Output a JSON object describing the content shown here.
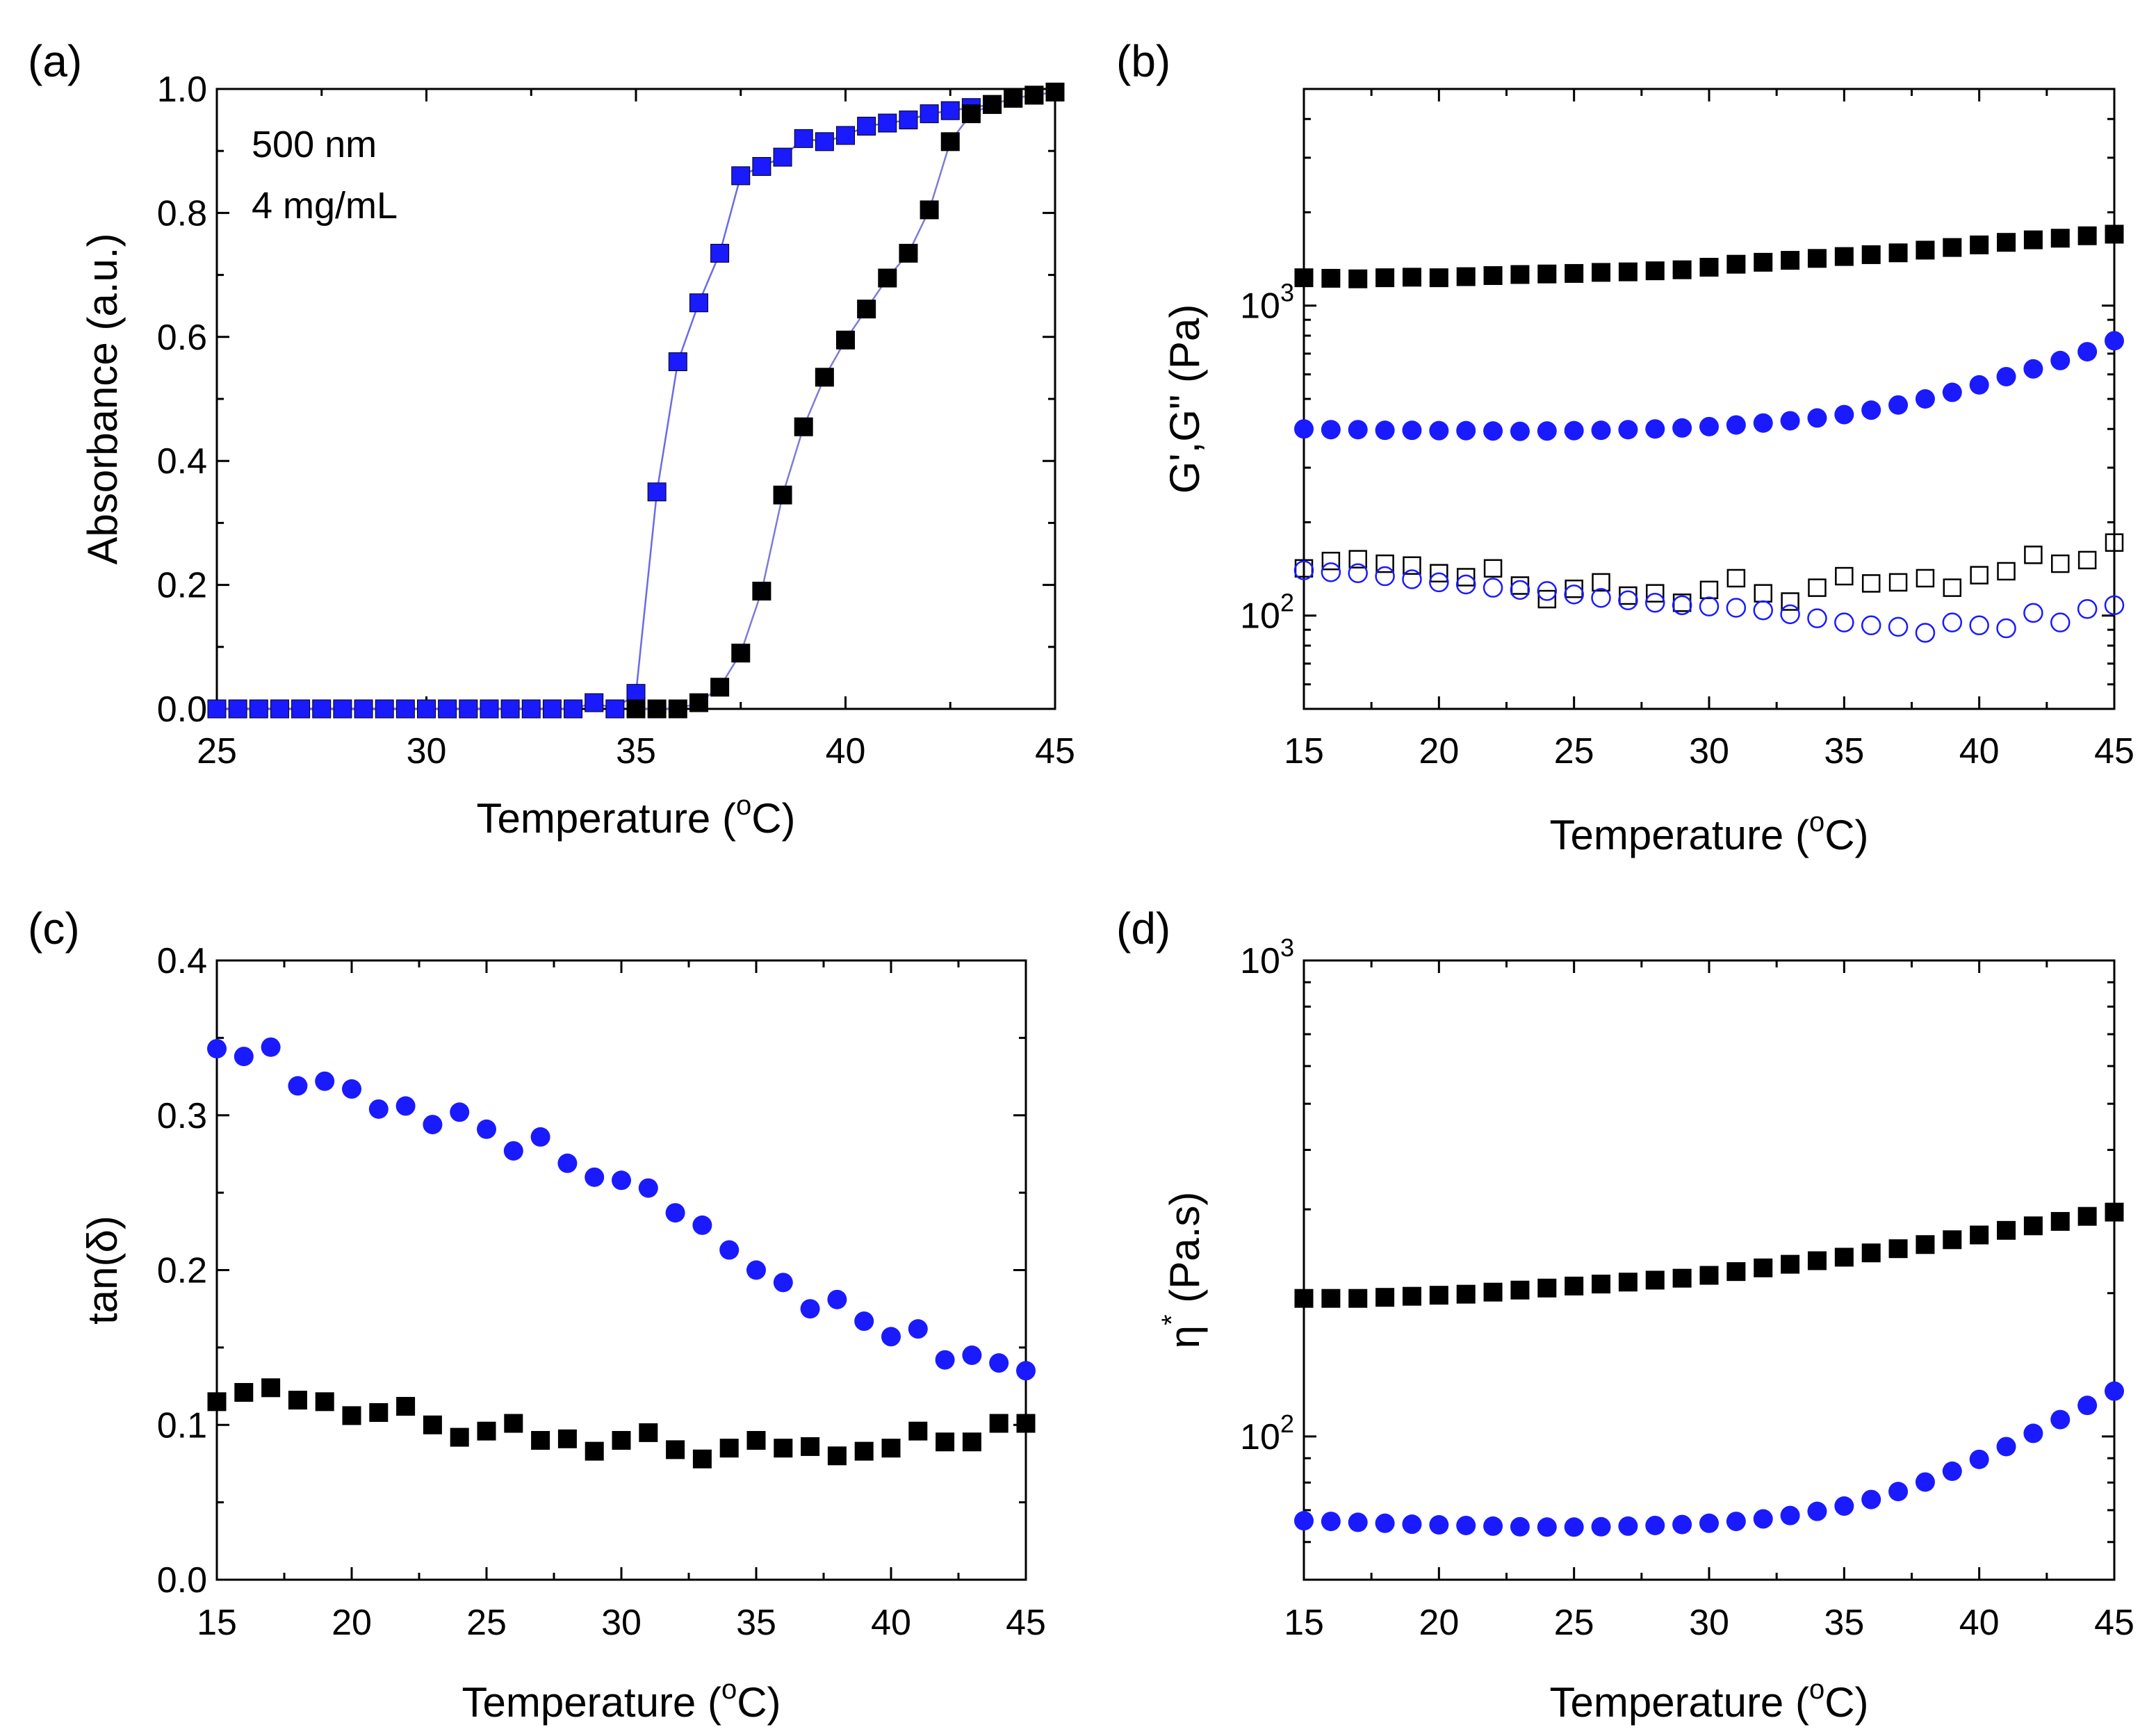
{
  "chart_data": [
    {
      "type": "scatter",
      "panel_label": "(a)",
      "xlabel": "Temperature (",
      "xlabel_unit": "oC",
      "xlabel_sup": "o",
      "xlabel_suffix": "C)",
      "ylabel": "Absorbance (a.u.)",
      "xlim": [
        25,
        45
      ],
      "ylim": [
        0,
        1.0
      ],
      "yscale": "linear",
      "xticks": [
        25,
        30,
        35,
        40,
        45
      ],
      "yticks": [
        "0.0",
        "0.2",
        "0.4",
        "0.6",
        "0.8",
        "1.0"
      ],
      "annotations": [
        "500 nm",
        "4 mg/mL"
      ],
      "series": [
        {
          "name": "blue",
          "color": "#1a1aff",
          "marker": "square-filled",
          "line": true,
          "x": [
            25,
            25.5,
            26,
            26.5,
            27,
            27.5,
            28,
            28.5,
            29,
            29.5,
            30,
            30.5,
            31,
            31.5,
            32,
            32.5,
            33,
            33.5,
            34,
            34.5,
            35,
            35.5,
            36,
            36.5,
            37,
            37.5,
            38,
            38.5,
            39,
            39.5,
            40,
            40.5,
            41,
            41.5,
            42,
            42.5,
            43,
            43.5,
            44,
            44.5,
            45
          ],
          "y": [
            0,
            0,
            0,
            0,
            0,
            0,
            0,
            0,
            0,
            0,
            0,
            0,
            0,
            0,
            0,
            0,
            0,
            0,
            0.01,
            0,
            0.025,
            0.35,
            0.56,
            0.655,
            0.735,
            0.86,
            0.875,
            0.89,
            0.92,
            0.915,
            0.925,
            0.94,
            0.945,
            0.95,
            0.96,
            0.965,
            0.97,
            0.975,
            0.985,
            0.99,
            0.995
          ]
        },
        {
          "name": "black",
          "color": "#000000",
          "marker": "square-filled",
          "line": true,
          "x": [
            35,
            35.5,
            36,
            36.5,
            37,
            37.5,
            38,
            38.5,
            39,
            39.5,
            40,
            40.5,
            41,
            41.5,
            42,
            42.5,
            43,
            43.5,
            44,
            44.5,
            45
          ],
          "y": [
            0,
            0,
            0,
            0.01,
            0.035,
            0.09,
            0.19,
            0.345,
            0.455,
            0.535,
            0.595,
            0.645,
            0.695,
            0.735,
            0.805,
            0.915,
            0.96,
            0.975,
            0.985,
            0.99,
            0.995
          ]
        }
      ]
    },
    {
      "type": "scatter",
      "panel_label": "(b)",
      "xlabel": "Temperature (",
      "xlabel_sup": "o",
      "xlabel_suffix": "C)",
      "ylabel": "G',G\" (Pa)",
      "xlim": [
        15,
        45
      ],
      "ylim": [
        50,
        5000
      ],
      "yscale": "log",
      "xticks": [
        15,
        20,
        25,
        30,
        35,
        40,
        45
      ],
      "yticks_major": [
        {
          "base": "10",
          "exp": "2",
          "value": 100
        },
        {
          "base": "10",
          "exp": "3",
          "value": 1000
        }
      ],
      "series": [
        {
          "name": "G' black",
          "color": "#000000",
          "marker": "square-filled",
          "x": [
            15,
            16,
            17,
            18,
            19,
            20,
            21,
            22,
            23,
            24,
            25,
            26,
            27,
            28,
            29,
            30,
            31,
            32,
            33,
            34,
            35,
            36,
            37,
            38,
            39,
            40,
            41,
            42,
            43,
            44,
            45
          ],
          "y": [
            1230,
            1225,
            1220,
            1230,
            1235,
            1230,
            1240,
            1250,
            1260,
            1265,
            1270,
            1280,
            1285,
            1295,
            1305,
            1330,
            1360,
            1380,
            1400,
            1420,
            1440,
            1460,
            1480,
            1510,
            1540,
            1570,
            1600,
            1630,
            1650,
            1680,
            1700
          ]
        },
        {
          "name": "G' blue",
          "color": "#1a1aff",
          "marker": "circle-filled",
          "x": [
            15,
            16,
            17,
            18,
            19,
            20,
            21,
            22,
            23,
            24,
            25,
            26,
            27,
            28,
            29,
            30,
            31,
            32,
            33,
            34,
            35,
            36,
            37,
            38,
            39,
            40,
            41,
            42,
            43,
            44,
            45
          ],
          "y": [
            400,
            398,
            398,
            396,
            396,
            395,
            395,
            394,
            393,
            394,
            395,
            396,
            398,
            400,
            403,
            407,
            412,
            418,
            425,
            434,
            445,
            460,
            478,
            500,
            525,
            555,
            590,
            625,
            665,
            710,
            770
          ]
        },
        {
          "name": "G\" black",
          "color": "#000000",
          "marker": "square-open",
          "x": [
            15,
            16,
            17,
            18,
            19,
            20,
            21,
            22,
            23,
            24,
            25,
            26,
            27,
            28,
            29,
            30,
            31,
            32,
            33,
            34,
            35,
            36,
            37,
            38,
            39,
            40,
            41,
            42,
            43,
            44,
            45
          ],
          "y": [
            142,
            150,
            152,
            147,
            145,
            137,
            133,
            142,
            125,
            113,
            122,
            128,
            116,
            118,
            110,
            121,
            132,
            118,
            111,
            123,
            134,
            127,
            128,
            132,
            123,
            135,
            139,
            157,
            147,
            151,
            172
          ]
        },
        {
          "name": "G\" blue",
          "color": "#1a1aff",
          "marker": "circle-open",
          "x": [
            15,
            16,
            17,
            18,
            19,
            20,
            21,
            22,
            23,
            24,
            25,
            26,
            27,
            28,
            29,
            30,
            31,
            32,
            33,
            34,
            35,
            36,
            37,
            38,
            39,
            40,
            41,
            42,
            43,
            44,
            45
          ],
          "y": [
            140,
            138,
            137,
            134,
            131,
            128,
            126,
            123,
            121,
            120,
            117,
            114,
            112,
            110,
            108,
            107,
            106,
            104,
            101,
            98,
            95,
            93,
            92,
            88,
            95,
            93,
            91,
            102,
            95,
            105,
            108
          ]
        }
      ]
    },
    {
      "type": "scatter",
      "panel_label": "(c)",
      "xlabel": "Temperature (",
      "xlabel_sup": "o",
      "xlabel_suffix": "C)",
      "ylabel": "tan(δ)",
      "xlim": [
        15,
        45
      ],
      "ylim": [
        0,
        0.4
      ],
      "yscale": "linear",
      "xticks": [
        15,
        20,
        25,
        30,
        35,
        40,
        45
      ],
      "yticks": [
        "0.0",
        "0.1",
        "0.2",
        "0.3",
        "0.4"
      ],
      "series": [
        {
          "name": "blue",
          "color": "#1a1aff",
          "marker": "circle-filled",
          "x": [
            15,
            16,
            17,
            18,
            19,
            20,
            21,
            22,
            23,
            24,
            25,
            26,
            27,
            28,
            29,
            30,
            31,
            32,
            33,
            34,
            35,
            36,
            37,
            38,
            39,
            40,
            41,
            42,
            43,
            44,
            45
          ],
          "y": [
            0.343,
            0.338,
            0.344,
            0.319,
            0.322,
            0.317,
            0.304,
            0.306,
            0.294,
            0.302,
            0.291,
            0.277,
            0.286,
            0.269,
            0.26,
            0.258,
            0.253,
            0.237,
            0.229,
            0.213,
            0.2,
            0.192,
            0.175,
            0.181,
            0.167,
            0.157,
            0.162,
            0.142,
            0.145,
            0.14,
            0.135
          ]
        },
        {
          "name": "black",
          "color": "#000000",
          "marker": "square-filled",
          "x": [
            15,
            16,
            17,
            18,
            19,
            20,
            21,
            22,
            23,
            24,
            25,
            26,
            27,
            28,
            29,
            30,
            31,
            32,
            33,
            34,
            35,
            36,
            37,
            38,
            39,
            40,
            41,
            42,
            43,
            44,
            45
          ],
          "y": [
            0.115,
            0.121,
            0.124,
            0.116,
            0.115,
            0.106,
            0.108,
            0.112,
            0.1,
            0.092,
            0.096,
            0.101,
            0.09,
            0.091,
            0.083,
            0.09,
            0.095,
            0.084,
            0.078,
            0.085,
            0.09,
            0.085,
            0.086,
            0.08,
            0.083,
            0.085,
            0.096,
            0.089,
            0.089,
            0.101,
            0.101
          ]
        }
      ]
    },
    {
      "type": "scatter",
      "panel_label": "(d)",
      "xlabel": "Temperature (",
      "xlabel_sup": "o",
      "xlabel_suffix": "C)",
      "ylabel_symbol": "η",
      "ylabel_sup": "*",
      "ylabel_unit": "(Pa.s)",
      "xlim": [
        15,
        45
      ],
      "ylim": [
        50,
        1000
      ],
      "yscale": "log",
      "xticks": [
        15,
        20,
        25,
        30,
        35,
        40,
        45
      ],
      "yticks_major": [
        {
          "base": "10",
          "exp": "2",
          "value": 100
        },
        {
          "base": "10",
          "exp": "3",
          "value": 1000
        }
      ],
      "series": [
        {
          "name": "black",
          "color": "#000000",
          "marker": "square-filled",
          "x": [
            15,
            16,
            17,
            18,
            19,
            20,
            21,
            22,
            23,
            24,
            25,
            26,
            27,
            28,
            29,
            30,
            31,
            32,
            33,
            34,
            35,
            36,
            37,
            38,
            39,
            40,
            41,
            42,
            43,
            44,
            45
          ],
          "y": [
            195,
            195,
            195,
            196,
            197,
            198,
            199,
            201,
            203,
            205,
            207,
            209,
            211,
            213,
            215,
            218,
            222,
            226,
            230,
            234,
            238,
            243,
            248,
            253,
            259,
            265,
            271,
            277,
            283,
            290,
            296
          ]
        },
        {
          "name": "blue",
          "color": "#1a1aff",
          "marker": "circle-filled",
          "x": [
            15,
            16,
            17,
            18,
            19,
            20,
            21,
            22,
            23,
            24,
            25,
            26,
            27,
            28,
            29,
            30,
            31,
            32,
            33,
            34,
            35,
            36,
            37,
            38,
            39,
            40,
            41,
            42,
            43,
            44,
            45
          ],
          "y": [
            66.5,
            66.3,
            66.0,
            65.7,
            65.4,
            65.2,
            65.0,
            64.8,
            64.6,
            64.5,
            64.5,
            64.6,
            64.8,
            65.0,
            65.3,
            65.7,
            66.3,
            67.1,
            68.2,
            69.6,
            71.4,
            73.7,
            76.6,
            80.2,
            84.5,
            89.5,
            95.2,
            101.5,
            108.5,
            116.2,
            124.5
          ]
        }
      ]
    }
  ]
}
